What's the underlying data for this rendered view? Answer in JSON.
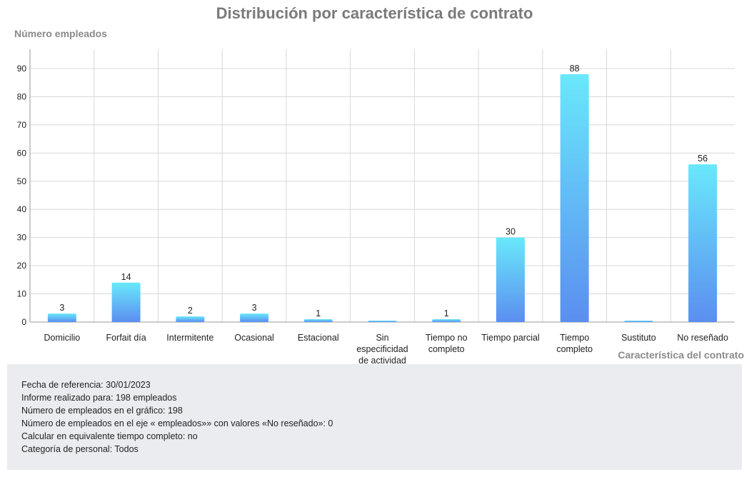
{
  "chart_data": {
    "type": "bar",
    "title": "Distribución por característica de contrato",
    "ylabel": "Número empleados",
    "xlabel": "Característica del contrato",
    "ylim": [
      0,
      96
    ],
    "yticks": [
      0,
      10,
      20,
      30,
      40,
      50,
      60,
      70,
      80,
      90
    ],
    "grid": true,
    "categories": [
      [
        "Domicilio"
      ],
      [
        "Forfait día"
      ],
      [
        "Intermitente"
      ],
      [
        "Ocasional"
      ],
      [
        "Estacional"
      ],
      [
        "Sin",
        "especificidad",
        "de actividad"
      ],
      [
        "Tiempo no",
        "completo"
      ],
      [
        "Tiempo parcial"
      ],
      [
        "Tiempo",
        "completo"
      ],
      [
        "Sustituto"
      ],
      [
        "No reseñado"
      ]
    ],
    "values": [
      3,
      14,
      2,
      3,
      1,
      0,
      1,
      30,
      88,
      0,
      56
    ],
    "value_labels": [
      "3",
      "14",
      "2",
      "3",
      "1",
      "",
      "1",
      "30",
      "88",
      "",
      "56"
    ],
    "colors": {
      "bar_top": "#69e8fb",
      "bar_bottom": "#5b8ef0",
      "grid": "#d5d8dc",
      "axis": "#999999"
    }
  },
  "info": {
    "lines": [
      "Fecha de referencia: 30/01/2023",
      "Informe realizado para: 198 empleados",
      "Número de empleados en el gráfico: 198",
      "Número de empleados en el eje « empleados»» con valores «No reseñado»: 0",
      "Calcular en equivalente tiempo completo: no",
      "Categoría de personal: Todos"
    ]
  }
}
